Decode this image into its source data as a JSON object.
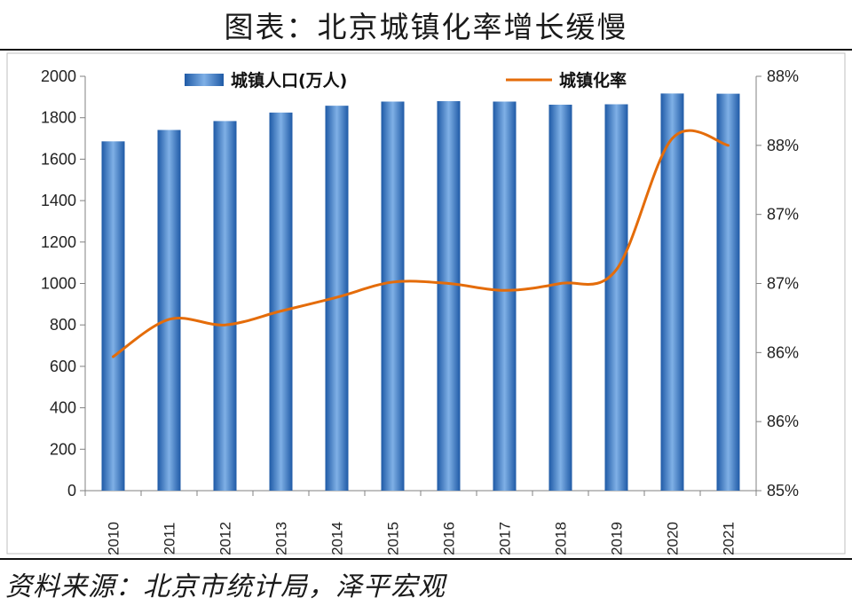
{
  "title": "图表：北京城镇化率增长缓慢",
  "source": "资料来源：北京市统计局，泽平宏观",
  "chart_data": {
    "type": "bar",
    "categories": [
      "2010",
      "2011",
      "2012",
      "2013",
      "2014",
      "2015",
      "2016",
      "2017",
      "2018",
      "2019",
      "2020",
      "2021"
    ],
    "series": [
      {
        "name": "城镇人口(万人)",
        "type": "bar",
        "axis": "left",
        "values": [
          1686,
          1741,
          1784,
          1825,
          1858,
          1878,
          1880,
          1878,
          1863,
          1865,
          1917,
          1916
        ],
        "color": "#2e6bb5"
      },
      {
        "name": "城镇化率",
        "type": "line",
        "axis": "right",
        "values": [
          85.97,
          86.24,
          86.2,
          86.3,
          86.4,
          86.51,
          86.5,
          86.45,
          86.5,
          86.6,
          87.55,
          87.5
        ],
        "color": "#e46c0a"
      }
    ],
    "y_left": {
      "min": 0,
      "max": 2000,
      "ticks": [
        "0",
        "200",
        "400",
        "600",
        "800",
        "1000",
        "1200",
        "1400",
        "1600",
        "1800",
        "2000"
      ]
    },
    "y_right": {
      "min": 85,
      "max": 88,
      "ticks": [
        "85%",
        "86%",
        "86%",
        "87%",
        "87%",
        "88%",
        "88%"
      ]
    },
    "legend_position": "top",
    "grid": false
  }
}
